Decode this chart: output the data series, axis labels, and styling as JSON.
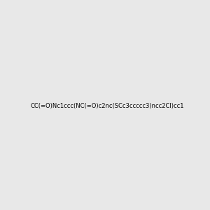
{
  "smiles": "CC(=O)Nc1ccc(NC(=O)c2nc(SCc3ccccc3)ncc2Cl)cc1",
  "background_color": "#e8e8e8",
  "image_size": 300,
  "atom_colors": {
    "N": "#0000FF",
    "O": "#FF0000",
    "S": "#CCCC00",
    "Cl": "#00CC00",
    "C": "#000000",
    "H": "#4a9a9a"
  }
}
